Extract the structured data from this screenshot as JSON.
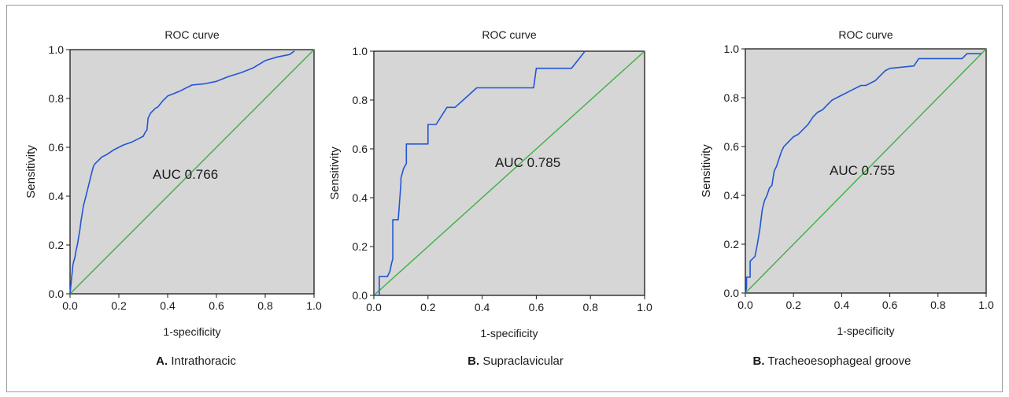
{
  "chart_data": [
    {
      "type": "line",
      "title": "ROC curve",
      "xlabel": "1-specificity",
      "ylabel": "Sensitivity",
      "xlim": [
        0,
        1
      ],
      "ylim": [
        0,
        1
      ],
      "xticks": [
        "0.0",
        "0.2",
        "0.4",
        "0.6",
        "0.8",
        "1.0"
      ],
      "yticks": [
        "0.0",
        "0.2",
        "0.4",
        "0.6",
        "0.8",
        "1.0"
      ],
      "annotation": "AUC 0.766",
      "caption_letter": "A.",
      "caption_text": "Intrathoracic",
      "series": [
        {
          "color": "#2255d6",
          "x": [
            0,
            0.005,
            0.01,
            0.012,
            0.02,
            0.025,
            0.03,
            0.035,
            0.04,
            0.045,
            0.05,
            0.055,
            0.06,
            0.065,
            0.07,
            0.075,
            0.08,
            0.085,
            0.09,
            0.095,
            0.1,
            0.11,
            0.12,
            0.13,
            0.15,
            0.18,
            0.2,
            0.22,
            0.25,
            0.28,
            0.3,
            0.31,
            0.315,
            0.32,
            0.33,
            0.35,
            0.36,
            0.38,
            0.4,
            0.45,
            0.5,
            0.55,
            0.6,
            0.65,
            0.7,
            0.75,
            0.8,
            0.85,
            0.9,
            0.92
          ],
          "y": [
            0,
            0.05,
            0.1,
            0.12,
            0.15,
            0.18,
            0.2,
            0.23,
            0.26,
            0.3,
            0.33,
            0.36,
            0.38,
            0.4,
            0.42,
            0.44,
            0.46,
            0.48,
            0.5,
            0.52,
            0.53,
            0.54,
            0.55,
            0.56,
            0.57,
            0.59,
            0.6,
            0.61,
            0.62,
            0.635,
            0.645,
            0.665,
            0.67,
            0.72,
            0.74,
            0.76,
            0.765,
            0.79,
            0.81,
            0.83,
            0.855,
            0.86,
            0.87,
            0.89,
            0.905,
            0.925,
            0.955,
            0.97,
            0.98,
            0.995
          ]
        },
        {
          "color": "#3cb043",
          "x": [
            0,
            1
          ],
          "y": [
            0,
            1
          ]
        }
      ]
    },
    {
      "type": "line",
      "title": "ROC curve",
      "xlabel": "1-specificity",
      "ylabel": "Sensitivity",
      "xlim": [
        0,
        1
      ],
      "ylim": [
        0,
        1
      ],
      "xticks": [
        "0.0",
        "0.2",
        "0.4",
        "0.6",
        "0.8",
        "1.0"
      ],
      "yticks": [
        "0.0",
        "0.2",
        "0.4",
        "0.6",
        "0.8",
        "1.0"
      ],
      "annotation": "AUC 0.785",
      "caption_letter": "B.",
      "caption_text": "Supraclavicular",
      "series": [
        {
          "color": "#2255d6",
          "x": [
            0,
            0.02,
            0.02,
            0.05,
            0.06,
            0.065,
            0.07,
            0.07,
            0.08,
            0.09,
            0.1,
            0.1,
            0.11,
            0.12,
            0.12,
            0.2,
            0.2,
            0.23,
            0.27,
            0.3,
            0.34,
            0.38,
            0.55,
            0.59,
            0.6,
            0.65,
            0.73,
            0.78
          ],
          "y": [
            0,
            0,
            0.077,
            0.077,
            0.1,
            0.13,
            0.15,
            0.31,
            0.31,
            0.31,
            0.46,
            0.48,
            0.52,
            0.54,
            0.62,
            0.62,
            0.7,
            0.7,
            0.77,
            0.77,
            0.81,
            0.85,
            0.85,
            0.85,
            0.93,
            0.93,
            0.93,
            1.0
          ]
        },
        {
          "color": "#3cb043",
          "x": [
            0,
            1
          ],
          "y": [
            0,
            1
          ]
        }
      ]
    },
    {
      "type": "line",
      "title": "ROC curve",
      "xlabel": "1-specificity",
      "ylabel": "Sensitivity",
      "xlim": [
        0,
        1
      ],
      "ylim": [
        0,
        1
      ],
      "xticks": [
        "0.0",
        "0.2",
        "0.4",
        "0.6",
        "0.8",
        "1.0"
      ],
      "yticks": [
        "0.0",
        "0.2",
        "0.4",
        "0.6",
        "0.8",
        "1.0"
      ],
      "annotation": "AUC 0.755",
      "caption_letter": "B.",
      "caption_text": "Tracheoesophageal groove",
      "series": [
        {
          "color": "#2255d6",
          "x": [
            0,
            0.005,
            0.005,
            0.02,
            0.02,
            0.04,
            0.05,
            0.055,
            0.06,
            0.065,
            0.07,
            0.08,
            0.09,
            0.1,
            0.11,
            0.12,
            0.13,
            0.14,
            0.15,
            0.16,
            0.17,
            0.18,
            0.2,
            0.22,
            0.24,
            0.26,
            0.28,
            0.3,
            0.32,
            0.33,
            0.34,
            0.36,
            0.38,
            0.4,
            0.42,
            0.44,
            0.48,
            0.5,
            0.54,
            0.56,
            0.58,
            0.6,
            0.7,
            0.72,
            0.8,
            0.9,
            0.92,
            0.98
          ],
          "y": [
            0,
            0.02,
            0.065,
            0.065,
            0.13,
            0.15,
            0.2,
            0.23,
            0.26,
            0.3,
            0.34,
            0.38,
            0.4,
            0.43,
            0.44,
            0.5,
            0.52,
            0.55,
            0.58,
            0.6,
            0.61,
            0.62,
            0.64,
            0.65,
            0.67,
            0.69,
            0.72,
            0.74,
            0.75,
            0.76,
            0.77,
            0.79,
            0.8,
            0.81,
            0.82,
            0.83,
            0.85,
            0.85,
            0.87,
            0.89,
            0.91,
            0.92,
            0.93,
            0.96,
            0.96,
            0.96,
            0.98,
            0.98
          ]
        },
        {
          "color": "#3cb043",
          "x": [
            0,
            1
          ],
          "y": [
            0,
            1
          ]
        }
      ]
    }
  ]
}
